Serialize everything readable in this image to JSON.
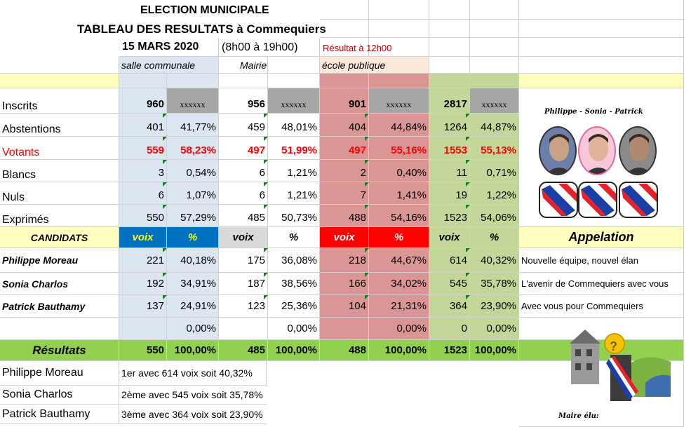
{
  "header": {
    "title": "ELECTION MUNICIPALE",
    "subtitle": "TABLEAU DES RESULTATS à Commequiers",
    "date": "15 MARS 2020",
    "hours": "(8h00 à 19h00)",
    "status": "Résultat à 12h00"
  },
  "locations": [
    "salle communale",
    "Mairie",
    "école publique"
  ],
  "stats": [
    {
      "label": "Inscrits",
      "cells": [
        "960",
        "xxxxxx",
        "956",
        "xxxxxx",
        "901",
        "xxxxxx",
        "2817",
        "xxxxxx"
      ]
    },
    {
      "label": "Abstentions",
      "cells": [
        "401",
        "41,77%",
        "459",
        "48,01%",
        "404",
        "44,84%",
        "1264",
        "44,87%"
      ]
    },
    {
      "label": "Votants",
      "cells": [
        "559",
        "58,23%",
        "497",
        "51,99%",
        "497",
        "55,16%",
        "1553",
        "55,13%"
      ]
    },
    {
      "label": "Blancs",
      "cells": [
        "3",
        "0,54%",
        "6",
        "1,21%",
        "2",
        "0,40%",
        "11",
        "0,71%"
      ]
    },
    {
      "label": "Nuls",
      "cells": [
        "6",
        "1,07%",
        "6",
        "1,21%",
        "7",
        "1,41%",
        "19",
        "1,22%"
      ]
    },
    {
      "label": "Exprimés",
      "cells": [
        "550",
        "57,29%",
        "485",
        "50,73%",
        "488",
        "54,16%",
        "1523",
        "54,06%"
      ]
    }
  ],
  "candidates_header": {
    "label": "CANDIDATS",
    "cells": [
      "voix",
      "%",
      "voix",
      "%",
      "voix",
      "%",
      "voix",
      "%"
    ],
    "appelation": "Appelation"
  },
  "candidates": [
    {
      "name": "Philippe Moreau",
      "cells": [
        "221",
        "40,18%",
        "175",
        "36,08%",
        "218",
        "44,67%",
        "614",
        "40,32%"
      ],
      "slogan": "Nouvelle équipe, nouvel élan"
    },
    {
      "name": "Sonia Charlos",
      "cells": [
        "192",
        "34,91%",
        "187",
        "38,56%",
        "166",
        "34,02%",
        "545",
        "35,78%"
      ],
      "slogan": "L'avenir de Commequiers avec vous"
    },
    {
      "name": "Patrick Bauthamy",
      "cells": [
        "137",
        "24,91%",
        "123",
        "25,36%",
        "104",
        "21,31%",
        "364",
        "23,90%"
      ],
      "slogan": "Avec vous pour Commequiers"
    }
  ],
  "empty_row": {
    "cells": [
      "",
      "0,00%",
      "",
      "0,00%",
      "",
      "0,00%",
      "0",
      "0,00%"
    ]
  },
  "results": {
    "label": "Résultats",
    "cells": [
      "550",
      "100,00%",
      "485",
      "100,00%",
      "488",
      "100,00%",
      "1523",
      "100,00%"
    ]
  },
  "ranking": [
    {
      "name": "Philippe Moreau",
      "text": "1er avec 614 voix soit 40,32%"
    },
    {
      "name": "Sonia Charlos",
      "text": "2ème avec 545 voix soit 35,78%"
    },
    {
      "name": "Patrick Bauthamy",
      "text": "3ème avec 364 voix soit 23,90%"
    }
  ],
  "side": {
    "names": "Philippe  -  Sonia  -  Patrick",
    "elected_label": "Maire élu:",
    "question_mark": "?"
  },
  "colors": {
    "yellow": "#ffffc0",
    "blue": "#dce6f1",
    "pink": "#fde9d9",
    "red": "#da9694",
    "green": "#c4d79b",
    "result_green": "#92d050",
    "voix_blue": "#0070c0",
    "bright_red": "#ff0000",
    "grey": "#a6a6a6",
    "votants_red": "#ff0000"
  }
}
